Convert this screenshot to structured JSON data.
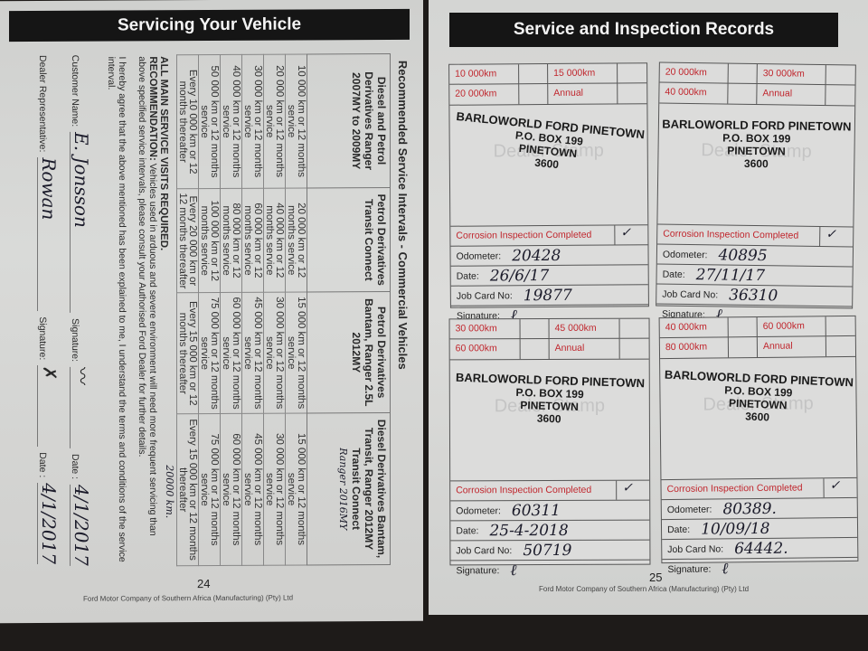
{
  "left_page": {
    "header": "Servicing Your Vehicle",
    "section_title": "Recommended Service Intervals - Commercial Vehicles",
    "columns": [
      {
        "header": "Diesel and Petrol Derivatives Ranger 2007MY to 2009MY",
        "rows": [
          "10 000 km or 12 months service",
          "20 000 km or 12 months service",
          "30 000 km or 12 months service",
          "40 000 km or 12 months service",
          "50 000 km or 12 months service",
          "Every 10 000 km or 12 months thereafter"
        ]
      },
      {
        "header": "Petrol Derivatives Transit Connect",
        "rows": [
          "20 000 km or 12 months service",
          "40 000 km or 12 months service",
          "60 000 km or 12 months service",
          "80 000 km or 12 months service",
          "100 000 km or 12 months service",
          "Every 20 000 km or 12 months thereafter"
        ]
      },
      {
        "header": "Petrol Derivatives Bantam, Ranger 2.5L 2012MY",
        "rows": [
          "15 000 km or 12 months service",
          "30 000 km or 12 months service",
          "45 000 km or 12 months service",
          "60 000 km or 12 months service",
          "75 000 km or 12 months service",
          "Every 15 000 km or 12 months thereafter"
        ]
      },
      {
        "header": "Diesel Derivatives Bantam, Transit, Ranger 2012MY Transit Connect",
        "rows": [
          "15 000 km or 12 months service",
          "30 000 km or 12 months service",
          "45 000 km or 12 months service",
          "60 000 km or 12 months service",
          "75 000 km or 12 months service",
          "Every 15 000 km or 12 months thereafter"
        ]
      }
    ],
    "handwritten_model": "Ranger 2016MY",
    "handwritten_interval": "20000 km.",
    "notice_title": "ALL MAIN SERVICE VISITS REQUIRED.",
    "notice_label": "RECOMMENDATION:",
    "notice_text": "Vehicles used in arduous and severe environment will need more frequent servicing than above specified service intervals, please consult your Authorised Ford Dealer for further details.",
    "agreement": "I hereby agree that the above mentioned has been explained to me, I understand the terms and conditions of the service interval.",
    "customer_name_label": "Customer Name:",
    "customer_name": "E. Jonsson",
    "signature_label": "Signature:",
    "date_label": "Date :",
    "customer_date": "4/1/2017",
    "dealer_rep_label": "Dealer Representative:",
    "dealer_rep": "Rowan",
    "dealer_date": "4/1/2017",
    "page_number": "24",
    "footer": "Ford Motor Company of Southern Africa (Manufacturing) (Pty) Ltd"
  },
  "right_page": {
    "header": "Service and Inspection Records",
    "ghost_text": "Dealer Stamp",
    "corrosion_label": "Corrosion Inspection Completed",
    "odometer_label": "Odometer:",
    "date_label": "Date:",
    "job_card_label": "Job Card No:",
    "signature_label": "Signature:",
    "stamp": [
      "BARLOWORLD FORD PINETOWN",
      "P.O. BOX 199",
      "PINETOWN",
      "3600"
    ],
    "cards": [
      {
        "intervals": [
          "10 000km",
          "15 000km",
          "20 000km",
          "Annual"
        ],
        "odometer": "20428",
        "date": "26/6/17",
        "job_card": "19877"
      },
      {
        "intervals": [
          "20 000km",
          "30 000km",
          "40 000km",
          "Annual"
        ],
        "odometer": "40895",
        "date": "27/11/17",
        "job_card": "36310"
      },
      {
        "intervals": [
          "30 000km",
          "45 000km",
          "60 000km",
          "Annual"
        ],
        "odometer": "60311",
        "date": "25-4-2018",
        "job_card": "50719"
      },
      {
        "intervals": [
          "40 000km",
          "60 000km",
          "80 000km",
          "Annual"
        ],
        "odometer": "80389.",
        "date": "10/09/18",
        "job_card": "64442."
      }
    ],
    "page_number": "25",
    "footer": "Ford Motor Company of Southern Africa (Manufacturing) (Pty) Ltd"
  }
}
